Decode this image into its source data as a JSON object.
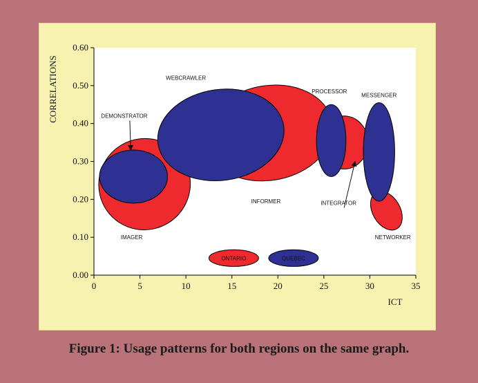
{
  "caption": "Figure 1: Usage patterns for both regions on the same graph.",
  "colors": {
    "ontario": "#ee2a2e",
    "quebec": "#2e3192",
    "frame": "#f7f2b0",
    "background": "#b97378"
  },
  "chart_data": {
    "type": "scatter",
    "xlabel": "ICT",
    "ylabel": "CORRELATIONS",
    "xlim": [
      0,
      35
    ],
    "ylim": [
      0,
      0.6
    ],
    "xticks": [
      "0",
      "5",
      "10",
      "15",
      "20",
      "25",
      "30",
      "35"
    ],
    "yticks": [
      "0.00",
      "0.10",
      "0.20",
      "0.30",
      "0.40",
      "0.50",
      "0.60"
    ],
    "grid": false,
    "legend": {
      "placement": "bottom-center",
      "entries": [
        "ONTARIO",
        "QUEBEC"
      ]
    },
    "series": [
      {
        "name": "ONTARIO",
        "color": "#ee2a2e",
        "regions": [
          {
            "cx": 5.5,
            "cy": 0.24,
            "rx": 5.0,
            "ry": 0.12,
            "angle": -35
          },
          {
            "cx": 19.0,
            "cy": 0.375,
            "rx": 7.0,
            "ry": 0.125,
            "angle": -10
          },
          {
            "cx": 27.2,
            "cy": 0.35,
            "rx": 2.6,
            "ry": 0.07,
            "angle": 0
          },
          {
            "cx": 31.8,
            "cy": 0.17,
            "rx": 1.5,
            "ry": 0.055,
            "angle": -30
          }
        ]
      },
      {
        "name": "QUEBEC",
        "color": "#2e3192",
        "regions": [
          {
            "cx": 4.3,
            "cy": 0.26,
            "rx": 3.7,
            "ry": 0.07,
            "angle": 0
          },
          {
            "cx": 13.8,
            "cy": 0.37,
            "rx": 6.9,
            "ry": 0.12,
            "angle": -8
          },
          {
            "cx": 25.8,
            "cy": 0.355,
            "rx": 1.6,
            "ry": 0.095,
            "angle": 0
          },
          {
            "cx": 31.0,
            "cy": 0.325,
            "rx": 1.7,
            "ry": 0.13,
            "angle": 0
          }
        ]
      }
    ],
    "annotations": [
      {
        "text": "WEBCRAWLER",
        "x": 10.0,
        "y": 0.515
      },
      {
        "text": "PROCESSOR",
        "x": 25.6,
        "y": 0.48
      },
      {
        "text": "MESSENGER",
        "x": 31.0,
        "y": 0.47
      },
      {
        "text": "DEMONSTRATOR",
        "x": 3.3,
        "y": 0.415,
        "arrow_to": [
          4.0,
          0.33
        ]
      },
      {
        "text": "INFORMER",
        "x": 18.7,
        "y": 0.19
      },
      {
        "text": "INTEGRATOR",
        "x": 26.6,
        "y": 0.185,
        "arrow_to": [
          28.4,
          0.3
        ]
      },
      {
        "text": "IMAGER",
        "x": 4.1,
        "y": 0.095
      },
      {
        "text": "NETWORKER",
        "x": 32.5,
        "y": 0.095
      }
    ],
    "legend_markers": [
      {
        "label": "ONTARIO",
        "cx": 15.2,
        "cy": 0.045,
        "rx": 2.7,
        "ry": 0.022
      },
      {
        "label": "QUEBEC",
        "cx": 21.7,
        "cy": 0.045,
        "rx": 2.7,
        "ry": 0.022
      }
    ]
  }
}
